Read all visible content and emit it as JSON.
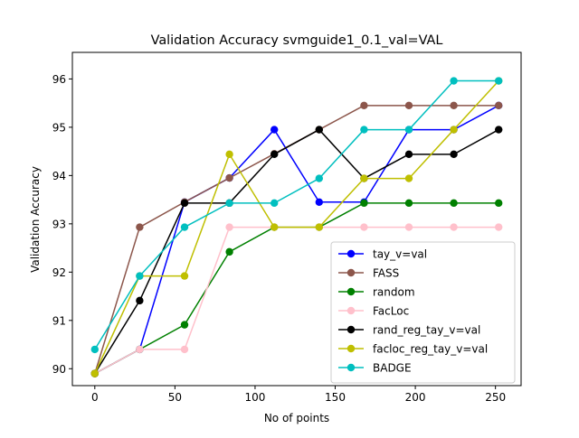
{
  "chart_data": {
    "type": "line",
    "title": "Validation Accuracy svmguide1_0.1_val=VAL",
    "xlabel": "No of points",
    "ylabel": "Validation Accuracy",
    "xlim": [
      -14,
      266
    ],
    "ylim": [
      89.65,
      96.55
    ],
    "x_ticks": [
      0,
      50,
      100,
      150,
      200,
      250
    ],
    "y_ticks": [
      90,
      91,
      92,
      93,
      94,
      95,
      96
    ],
    "x": [
      0,
      28,
      56,
      84,
      112,
      140,
      168,
      196,
      224,
      252
    ],
    "grid": false,
    "legend_position": "lower right",
    "series": [
      {
        "name": "tay_v=val",
        "color": "#0000ff",
        "values": [
          89.9,
          90.4,
          93.45,
          93.95,
          94.95,
          93.45,
          93.45,
          94.95,
          94.95,
          95.45
        ]
      },
      {
        "name": "FASS",
        "color": "#8c564b",
        "values": [
          89.9,
          92.93,
          93.45,
          93.95,
          94.45,
          94.95,
          95.45,
          95.45,
          95.45,
          95.45
        ]
      },
      {
        "name": "random",
        "color": "#008000",
        "values": [
          89.9,
          90.4,
          90.91,
          92.42,
          92.93,
          92.93,
          93.43,
          93.43,
          93.43,
          93.43
        ]
      },
      {
        "name": "FacLoc",
        "color": "#ffc0cb",
        "values": [
          89.9,
          90.4,
          90.4,
          92.93,
          92.93,
          92.93,
          92.93,
          92.93,
          92.93,
          92.93
        ]
      },
      {
        "name": "rand_reg_tay_v=val",
        "color": "#000000",
        "values": [
          89.9,
          91.41,
          93.43,
          93.43,
          94.44,
          94.95,
          93.94,
          94.44,
          94.44,
          94.95
        ]
      },
      {
        "name": "facloc_reg_tay_v=val",
        "color": "#bfbf00",
        "values": [
          89.9,
          91.92,
          91.92,
          94.44,
          92.93,
          92.93,
          93.94,
          93.94,
          94.95,
          95.96
        ]
      },
      {
        "name": "BADGE",
        "color": "#00bfbf",
        "values": [
          90.4,
          91.92,
          92.93,
          93.43,
          93.43,
          93.94,
          94.95,
          94.95,
          95.96,
          95.96
        ]
      }
    ]
  }
}
